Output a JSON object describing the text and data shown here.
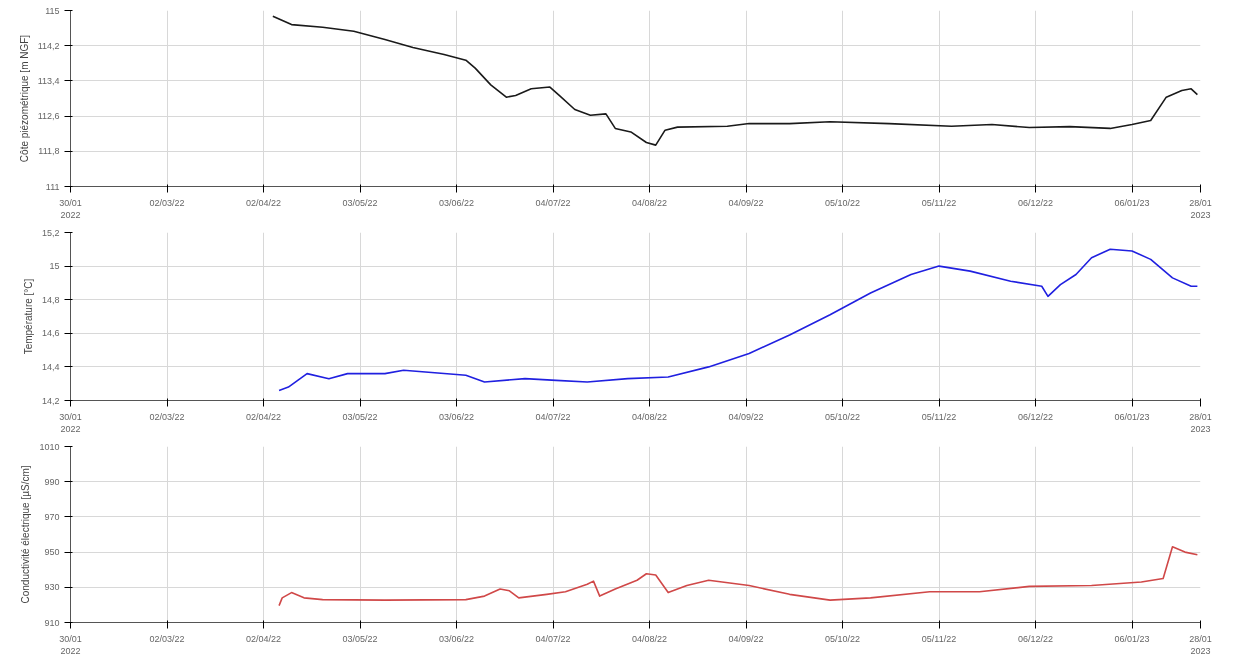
{
  "chart_data": [
    {
      "type": "line",
      "ylabel": "Côte piézométrique [m NGF]",
      "grid": true,
      "xlim": [
        "2022-01-30",
        "2023-01-28"
      ],
      "xticks": [
        {
          "value": "2022-01-30",
          "label": "30/01\n2022"
        },
        {
          "value": "2022-03-02",
          "label": "02/03/22"
        },
        {
          "value": "2022-04-02",
          "label": "02/04/22"
        },
        {
          "value": "2022-05-03",
          "label": "03/05/22"
        },
        {
          "value": "2022-06-03",
          "label": "03/06/22"
        },
        {
          "value": "2022-07-04",
          "label": "04/07/22"
        },
        {
          "value": "2022-08-04",
          "label": "04/08/22"
        },
        {
          "value": "2022-09-04",
          "label": "04/09/22"
        },
        {
          "value": "2022-10-05",
          "label": "05/10/22"
        },
        {
          "value": "2022-11-05",
          "label": "05/11/22"
        },
        {
          "value": "2022-12-06",
          "label": "06/12/22"
        },
        {
          "value": "2023-01-06",
          "label": "06/01/23"
        },
        {
          "value": "2023-01-28",
          "label": "28/01\n2023"
        }
      ],
      "ylim": [
        111,
        115
      ],
      "yticks": [
        111,
        {
          "value": 111.8,
          "label": "111,8"
        },
        {
          "value": 112.6,
          "label": "112,6"
        },
        {
          "value": 113.4,
          "label": "113,4"
        },
        {
          "value": 114.2,
          "label": "114,2"
        },
        115
      ],
      "series": [
        {
          "color": "#1a1a1a",
          "x": [
            "2022-04-05",
            "2022-04-11",
            "2022-04-21",
            "2022-05-01",
            "2022-05-11",
            "2022-05-20",
            "2022-05-30",
            "2022-06-06",
            "2022-06-09",
            "2022-06-14",
            "2022-06-19",
            "2022-06-22",
            "2022-06-27",
            "2022-07-03",
            "2022-07-06",
            "2022-07-11",
            "2022-07-16",
            "2022-07-21",
            "2022-07-24",
            "2022-07-29",
            "2022-08-03",
            "2022-08-06",
            "2022-08-09",
            "2022-08-13",
            "2022-08-29",
            "2022-09-05",
            "2022-09-18",
            "2022-10-01",
            "2022-10-20",
            "2022-11-09",
            "2022-11-22",
            "2022-12-04",
            "2022-12-17",
            "2022-12-30",
            "2023-01-06",
            "2023-01-12",
            "2023-01-17",
            "2023-01-22",
            "2023-01-25",
            "2023-01-27"
          ],
          "values": [
            114.87,
            114.68,
            114.62,
            114.53,
            114.34,
            114.16,
            114.0,
            113.87,
            113.69,
            113.31,
            113.03,
            113.07,
            113.22,
            113.26,
            113.07,
            112.75,
            112.62,
            112.65,
            112.32,
            112.24,
            112.0,
            111.94,
            112.28,
            112.35,
            112.37,
            112.43,
            112.43,
            112.47,
            112.43,
            112.37,
            112.41,
            112.34,
            112.36,
            112.32,
            112.41,
            112.5,
            113.03,
            113.18,
            113.22,
            113.09
          ]
        }
      ]
    },
    {
      "type": "line",
      "ylabel": "Température [°C]",
      "grid": true,
      "xlim": [
        "2022-01-30",
        "2023-01-28"
      ],
      "xticks": [
        {
          "value": "2022-01-30",
          "label": "30/01\n2022"
        },
        {
          "value": "2022-03-02",
          "label": "02/03/22"
        },
        {
          "value": "2022-04-02",
          "label": "02/04/22"
        },
        {
          "value": "2022-05-03",
          "label": "03/05/22"
        },
        {
          "value": "2022-06-03",
          "label": "03/06/22"
        },
        {
          "value": "2022-07-04",
          "label": "04/07/22"
        },
        {
          "value": "2022-08-04",
          "label": "04/08/22"
        },
        {
          "value": "2022-09-04",
          "label": "04/09/22"
        },
        {
          "value": "2022-10-05",
          "label": "05/10/22"
        },
        {
          "value": "2022-11-05",
          "label": "05/11/22"
        },
        {
          "value": "2022-12-06",
          "label": "06/12/22"
        },
        {
          "value": "2023-01-06",
          "label": "06/01/23"
        },
        {
          "value": "2023-01-28",
          "label": "28/01\n2023"
        }
      ],
      "ylim": [
        14.2,
        15.2
      ],
      "yticks": [
        {
          "value": 14.2,
          "label": "14,2"
        },
        {
          "value": 14.4,
          "label": "14,4"
        },
        {
          "value": 14.6,
          "label": "14,6"
        },
        {
          "value": 14.8,
          "label": "14,8"
        },
        15,
        {
          "value": 15.2,
          "label": "15,2"
        }
      ],
      "series": [
        {
          "color": "#2020e0",
          "x": [
            "2022-04-07",
            "2022-04-10",
            "2022-04-16",
            "2022-04-23",
            "2022-04-29",
            "2022-05-11",
            "2022-05-17",
            "2022-05-24",
            "2022-06-06",
            "2022-06-12",
            "2022-06-25",
            "2022-07-05",
            "2022-07-15",
            "2022-07-28",
            "2022-08-10",
            "2022-08-23",
            "2022-09-05",
            "2022-09-18",
            "2022-10-01",
            "2022-10-14",
            "2022-10-27",
            "2022-11-05",
            "2022-11-15",
            "2022-11-28",
            "2022-12-08",
            "2022-12-10",
            "2022-12-14",
            "2022-12-19",
            "2022-12-24",
            "2022-12-30",
            "2023-01-06",
            "2023-01-12",
            "2023-01-19",
            "2023-01-25",
            "2023-01-27"
          ],
          "values": [
            14.26,
            14.28,
            14.36,
            14.33,
            14.36,
            14.36,
            14.38,
            14.37,
            14.35,
            14.31,
            14.33,
            14.32,
            14.31,
            14.33,
            14.34,
            14.4,
            14.48,
            14.59,
            14.71,
            14.84,
            14.95,
            15.0,
            14.97,
            14.91,
            14.88,
            14.82,
            14.89,
            14.95,
            15.05,
            15.1,
            15.09,
            15.04,
            14.93,
            14.88,
            14.88
          ]
        }
      ]
    },
    {
      "type": "line",
      "ylabel": "Conductivité électrique [µS/cm]",
      "grid": true,
      "xlim": [
        "2022-01-30",
        "2023-01-28"
      ],
      "xticks": [
        {
          "value": "2022-01-30",
          "label": "30/01\n2022"
        },
        {
          "value": "2022-03-02",
          "label": "02/03/22"
        },
        {
          "value": "2022-04-02",
          "label": "02/04/22"
        },
        {
          "value": "2022-05-03",
          "label": "03/05/22"
        },
        {
          "value": "2022-06-03",
          "label": "03/06/22"
        },
        {
          "value": "2022-07-04",
          "label": "04/07/22"
        },
        {
          "value": "2022-08-04",
          "label": "04/08/22"
        },
        {
          "value": "2022-09-04",
          "label": "04/09/22"
        },
        {
          "value": "2022-10-05",
          "label": "05/10/22"
        },
        {
          "value": "2022-11-05",
          "label": "05/11/22"
        },
        {
          "value": "2022-12-06",
          "label": "06/12/22"
        },
        {
          "value": "2023-01-06",
          "label": "06/01/23"
        },
        {
          "value": "2023-01-28",
          "label": "28/01\n2023"
        }
      ],
      "ylim": [
        910,
        1010
      ],
      "yticks": [
        910,
        930,
        950,
        970,
        990,
        1010
      ],
      "series": [
        {
          "color": "#d04848",
          "x": [
            "2022-04-07",
            "2022-04-08",
            "2022-04-11",
            "2022-04-15",
            "2022-04-21",
            "2022-05-11",
            "2022-06-06",
            "2022-06-12",
            "2022-06-17",
            "2022-06-20",
            "2022-06-23",
            "2022-07-02",
            "2022-07-08",
            "2022-07-15",
            "2022-07-17",
            "2022-07-19",
            "2022-07-24",
            "2022-07-31",
            "2022-08-03",
            "2022-08-06",
            "2022-08-10",
            "2022-08-16",
            "2022-08-23",
            "2022-09-05",
            "2022-09-18",
            "2022-10-01",
            "2022-10-14",
            "2022-11-02",
            "2022-11-18",
            "2022-12-04",
            "2022-12-24",
            "2023-01-09",
            "2023-01-16",
            "2023-01-19",
            "2023-01-23",
            "2023-01-27"
          ],
          "values": [
            919.6,
            924,
            927,
            924,
            923,
            922.7,
            923,
            925,
            929,
            928,
            924,
            926,
            927.5,
            931.7,
            933.5,
            925,
            929,
            934,
            937.7,
            937,
            927,
            931,
            934,
            931,
            926,
            922.7,
            924,
            927.5,
            927.5,
            930.5,
            931,
            933,
            935,
            953,
            950,
            948.5
          ]
        }
      ]
    }
  ]
}
